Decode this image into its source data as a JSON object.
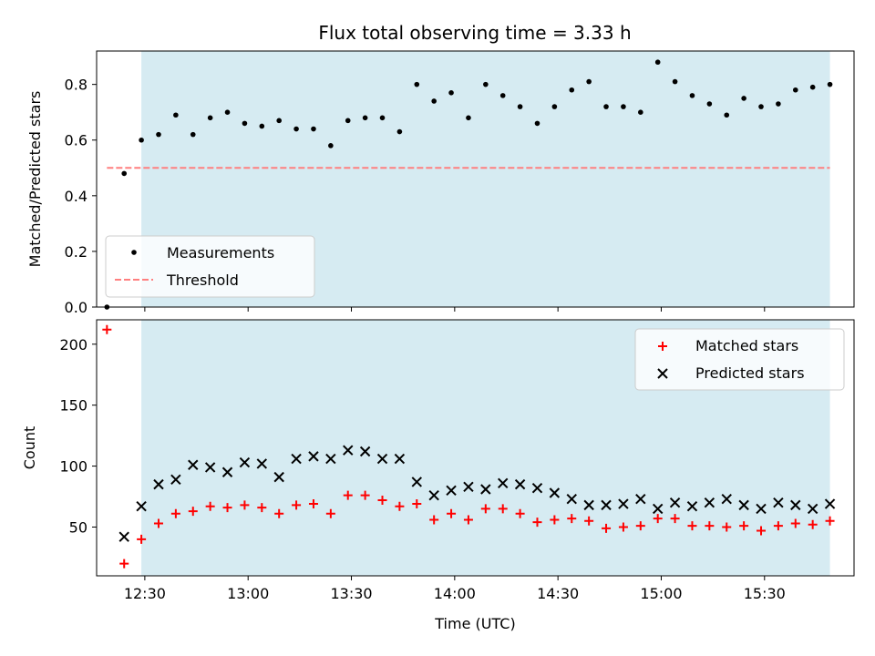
{
  "title": "Flux total observing time = 3.33 h",
  "colors": {
    "shade": "#add8e6",
    "measurements": "#000000",
    "threshold": "#ff7f7f",
    "matched": "#ff0000",
    "predicted": "#000000"
  },
  "chart_data": [
    {
      "type": "scatter",
      "panel": "top",
      "ylabel": "Matched/Predicted stars",
      "xlabel": "",
      "ylim": [
        0,
        0.92
      ],
      "yticks": [
        "0.0",
        "0.2",
        "0.4",
        "0.6",
        "0.8"
      ],
      "ytick_values": [
        0,
        0.2,
        0.4,
        0.6,
        0.8
      ],
      "shaded_interval": [
        "12:29",
        "15:49"
      ],
      "threshold": {
        "name": "Threshold",
        "value": 0.5,
        "x_range": [
          "12:19",
          "15:49"
        ]
      },
      "legend": {
        "placement": "lower-left",
        "entries": [
          "Measurements",
          "Threshold"
        ]
      },
      "series": [
        {
          "name": "Measurements",
          "x": [
            "12:19",
            "12:24",
            "12:29",
            "12:34",
            "12:39",
            "12:44",
            "12:49",
            "12:54",
            "12:59",
            "13:04",
            "13:09",
            "13:14",
            "13:19",
            "13:24",
            "13:29",
            "13:34",
            "13:39",
            "13:44",
            "13:49",
            "13:54",
            "13:59",
            "14:04",
            "14:09",
            "14:14",
            "14:19",
            "14:24",
            "14:29",
            "14:34",
            "14:39",
            "14:44",
            "14:49",
            "14:54",
            "14:59",
            "15:04",
            "15:09",
            "15:14",
            "15:19",
            "15:24",
            "15:29",
            "15:34",
            "15:39",
            "15:44",
            "15:49"
          ],
          "values": [
            0.0,
            0.48,
            0.6,
            0.62,
            0.69,
            0.62,
            0.68,
            0.7,
            0.66,
            0.65,
            0.67,
            0.64,
            0.64,
            0.58,
            0.67,
            0.68,
            0.68,
            0.63,
            0.8,
            0.74,
            0.77,
            0.68,
            0.8,
            0.76,
            0.72,
            0.66,
            0.72,
            0.78,
            0.81,
            0.72,
            0.72,
            0.7,
            0.88,
            0.81,
            0.76,
            0.73,
            0.69,
            0.75,
            0.72,
            0.73,
            0.78,
            0.79,
            0.8
          ]
        }
      ]
    },
    {
      "type": "scatter",
      "panel": "bottom",
      "ylabel": "Count",
      "xlabel": "Time (UTC)",
      "ylim": [
        10,
        220
      ],
      "yticks": [
        "50",
        "100",
        "150",
        "200"
      ],
      "ytick_values": [
        50,
        100,
        150,
        200
      ],
      "xlim": [
        "12:16",
        "15:56"
      ],
      "xticks": [
        "12:30",
        "13:00",
        "13:30",
        "14:00",
        "14:30",
        "15:00",
        "15:30"
      ],
      "shaded_interval": [
        "12:29",
        "15:49"
      ],
      "legend": {
        "placement": "upper-right",
        "entries": [
          "Matched stars",
          "Predicted stars"
        ]
      },
      "series": [
        {
          "name": "Matched stars",
          "marker": "plus",
          "x": [
            "12:19",
            "12:24",
            "12:29",
            "12:34",
            "12:39",
            "12:44",
            "12:49",
            "12:54",
            "12:59",
            "13:04",
            "13:09",
            "13:14",
            "13:19",
            "13:24",
            "13:29",
            "13:34",
            "13:39",
            "13:44",
            "13:49",
            "13:54",
            "13:59",
            "14:04",
            "14:09",
            "14:14",
            "14:19",
            "14:24",
            "14:29",
            "14:34",
            "14:39",
            "14:44",
            "14:49",
            "14:54",
            "14:59",
            "15:04",
            "15:09",
            "15:14",
            "15:19",
            "15:24",
            "15:29",
            "15:34",
            "15:39",
            "15:44",
            "15:49"
          ],
          "values": [
            212,
            20,
            40,
            53,
            61,
            63,
            67,
            66,
            68,
            66,
            61,
            68,
            69,
            61,
            76,
            76,
            72,
            67,
            69,
            56,
            61,
            56,
            65,
            65,
            61,
            54,
            56,
            57,
            55,
            49,
            50,
            51,
            57,
            57,
            51,
            51,
            50,
            51,
            47,
            51,
            53,
            52,
            55
          ]
        },
        {
          "name": "Predicted stars",
          "marker": "x",
          "x": [
            "12:24",
            "12:29",
            "12:34",
            "12:39",
            "12:44",
            "12:49",
            "12:54",
            "12:59",
            "13:04",
            "13:09",
            "13:14",
            "13:19",
            "13:24",
            "13:29",
            "13:34",
            "13:39",
            "13:44",
            "13:49",
            "13:54",
            "13:59",
            "14:04",
            "14:09",
            "14:14",
            "14:19",
            "14:24",
            "14:29",
            "14:34",
            "14:39",
            "14:44",
            "14:49",
            "14:54",
            "14:59",
            "15:04",
            "15:09",
            "15:14",
            "15:19",
            "15:24",
            "15:29",
            "15:34",
            "15:39",
            "15:44",
            "15:49"
          ],
          "values": [
            42,
            67,
            85,
            89,
            101,
            99,
            95,
            103,
            102,
            91,
            106,
            108,
            106,
            113,
            112,
            106,
            106,
            87,
            76,
            80,
            83,
            81,
            86,
            85,
            82,
            78,
            73,
            68,
            68,
            69,
            73,
            65,
            70,
            67,
            70,
            73,
            68,
            65,
            70,
            68,
            65,
            69
          ]
        }
      ]
    }
  ]
}
